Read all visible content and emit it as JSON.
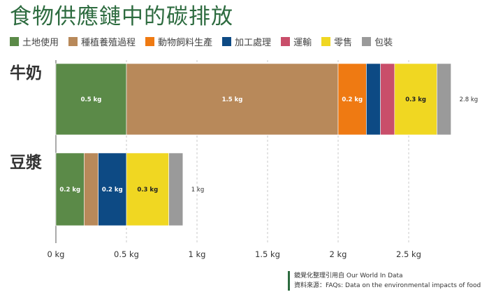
{
  "title": "食物供應鏈中的碳排放",
  "legend": [
    {
      "label": "土地使用",
      "color": "#5b8a48"
    },
    {
      "label": "種植養殖過程",
      "color": "#b8895a"
    },
    {
      "label": "動物飼料生產",
      "color": "#ef7a12"
    },
    {
      "label": "加工處理",
      "color": "#0d4a84"
    },
    {
      "label": "運輸",
      "color": "#c94e6a"
    },
    {
      "label": "零售",
      "color": "#f0d722"
    },
    {
      "label": "包裝",
      "color": "#9a9a9a"
    }
  ],
  "chart_data": {
    "type": "bar",
    "orientation": "horizontal",
    "stacked": true,
    "categories": [
      "牛奶",
      "豆漿"
    ],
    "series": [
      {
        "name": "土地使用",
        "values": [
          0.5,
          0.2
        ],
        "labels": [
          "0.5 kg",
          "0.2 kg"
        ]
      },
      {
        "name": "種植養殖過程",
        "values": [
          1.5,
          0.1
        ],
        "labels": [
          "1.5 kg",
          ""
        ]
      },
      {
        "name": "動物飼料生產",
        "values": [
          0.2,
          0
        ],
        "labels": [
          "0.2 kg",
          ""
        ]
      },
      {
        "name": "加工處理",
        "values": [
          0.1,
          0.2
        ],
        "labels": [
          "",
          "0.2 kg"
        ]
      },
      {
        "name": "運輸",
        "values": [
          0.1,
          0
        ],
        "labels": [
          "",
          ""
        ]
      },
      {
        "name": "零售",
        "values": [
          0.3,
          0.3
        ],
        "labels": [
          "0.3 kg",
          "0.3 kg"
        ]
      },
      {
        "name": "包裝",
        "values": [
          0.1,
          0.1
        ],
        "labels": [
          "",
          ""
        ]
      }
    ],
    "totals": [
      "2.8 kg",
      "1 kg"
    ],
    "xlim": [
      0,
      3
    ],
    "xticks": [
      0,
      0.5,
      1,
      1.5,
      2,
      2.5
    ],
    "xtick_labels": [
      "0 kg",
      "0.5 kg",
      "1 kg",
      "1.5 kg",
      "2 kg",
      "2.5 kg"
    ],
    "grid": "vertical dashed"
  },
  "source": {
    "line1": "鏡覺化整理引用自 Our World In Data",
    "line2": "資料來源：FAQs: Data on the environmental impacts of food"
  }
}
